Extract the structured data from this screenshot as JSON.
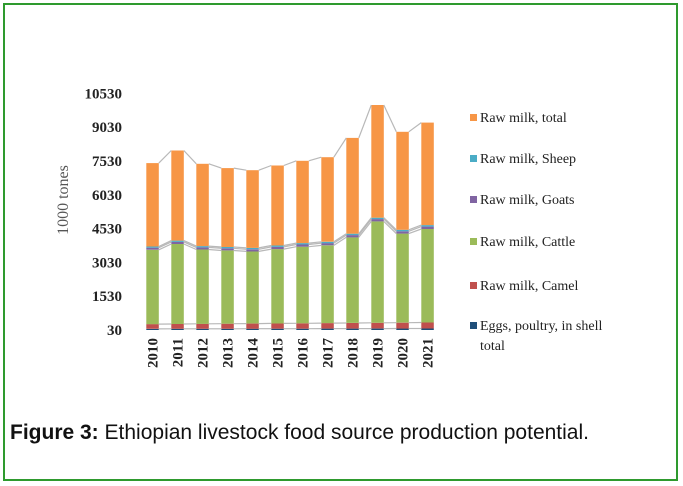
{
  "chart_data": {
    "type": "bar",
    "stacked": true,
    "ylabel": "1000 tones",
    "yticks": [
      30,
      1530,
      3030,
      4530,
      6030,
      7530,
      9030,
      10530
    ],
    "ylim": [
      30,
      12100
    ],
    "categories": [
      "2010",
      "2011",
      "2012",
      "2013",
      "2014",
      "2015",
      "2016",
      "2017",
      "2018",
      "2019",
      "2020",
      "2021"
    ],
    "series": [
      {
        "name": "Eggs, poultry, in shell total",
        "color": "#1f4e79",
        "values": [
          50,
          52,
          53,
          55,
          56,
          57,
          58,
          60,
          62,
          64,
          66,
          68
        ]
      },
      {
        "name": "Raw milk, Camel",
        "color": "#c0504d",
        "values": [
          210,
          215,
          220,
          225,
          230,
          235,
          240,
          245,
          250,
          255,
          260,
          265
        ]
      },
      {
        "name": "Raw milk, Cattle",
        "color": "#9bbb59",
        "values": [
          3300,
          3550,
          3300,
          3250,
          3200,
          3300,
          3400,
          3450,
          3800,
          4500,
          3950,
          4150
        ]
      },
      {
        "name": "Raw milk, Goats",
        "color": "#8064a2",
        "values": [
          90,
          92,
          94,
          95,
          96,
          97,
          98,
          99,
          100,
          102,
          104,
          106
        ]
      },
      {
        "name": "Raw milk, Sheep",
        "color": "#4bacc6",
        "values": [
          55,
          56,
          57,
          58,
          59,
          60,
          61,
          62,
          63,
          64,
          65,
          66
        ]
      },
      {
        "name": "Raw milk, total",
        "color": "#f79646",
        "values": [
          3700,
          4000,
          3650,
          3500,
          3450,
          3550,
          3650,
          3750,
          4250,
          5000,
          4350,
          4550
        ]
      }
    ],
    "legend_position": "right"
  },
  "caption": {
    "label": "Figure 3:",
    "text": " Ethiopian livestock food source production potential."
  }
}
